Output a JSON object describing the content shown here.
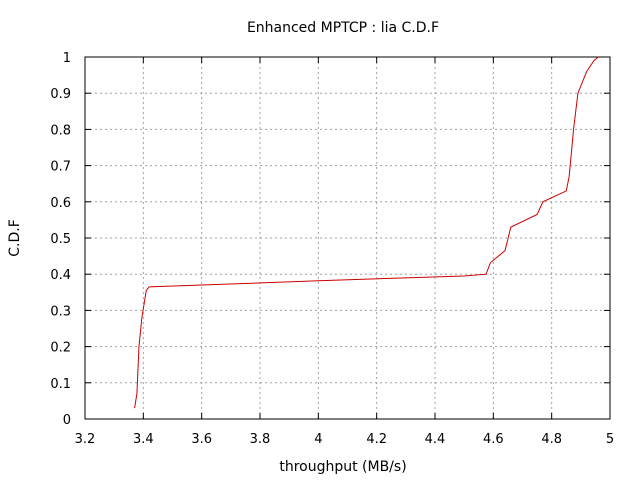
{
  "chart_data": {
    "type": "line",
    "title": "Enhanced MPTCP : lia C.D.F",
    "xlabel": "throughput (MB/s)",
    "ylabel": "C.D.F",
    "xlim": [
      3.2,
      5.0
    ],
    "ylim": [
      0,
      1
    ],
    "xticks": [
      3.2,
      3.4,
      3.6,
      3.8,
      4.0,
      4.2,
      4.4,
      4.6,
      4.8,
      5.0
    ],
    "xtick_labels": [
      "3.2",
      "3.4",
      "3.6",
      "3.8",
      "4",
      "4.2",
      "4.4",
      "4.6",
      "4.8",
      "5"
    ],
    "yticks": [
      0,
      0.1,
      0.2,
      0.3,
      0.4,
      0.5,
      0.6,
      0.7,
      0.8,
      0.9,
      1.0
    ],
    "ytick_labels": [
      "0",
      "0.1",
      "0.2",
      "0.3",
      "0.4",
      "0.5",
      "0.6",
      "0.7",
      "0.8",
      "0.9",
      "1"
    ],
    "grid": true,
    "series": [
      {
        "color": "#cc0000",
        "x": [
          3.37,
          3.378,
          3.385,
          3.395,
          3.41,
          3.42,
          3.6,
          4.0,
          4.3,
          4.5,
          4.575,
          4.59,
          4.64,
          4.66,
          4.75,
          4.77,
          4.85,
          4.86,
          4.875,
          4.89,
          4.92,
          4.945,
          4.96
        ],
        "y": [
          0.03,
          0.07,
          0.2,
          0.28,
          0.355,
          0.365,
          0.37,
          0.382,
          0.39,
          0.395,
          0.4,
          0.432,
          0.465,
          0.53,
          0.565,
          0.6,
          0.63,
          0.67,
          0.8,
          0.9,
          0.96,
          0.99,
          1.0
        ]
      }
    ]
  }
}
